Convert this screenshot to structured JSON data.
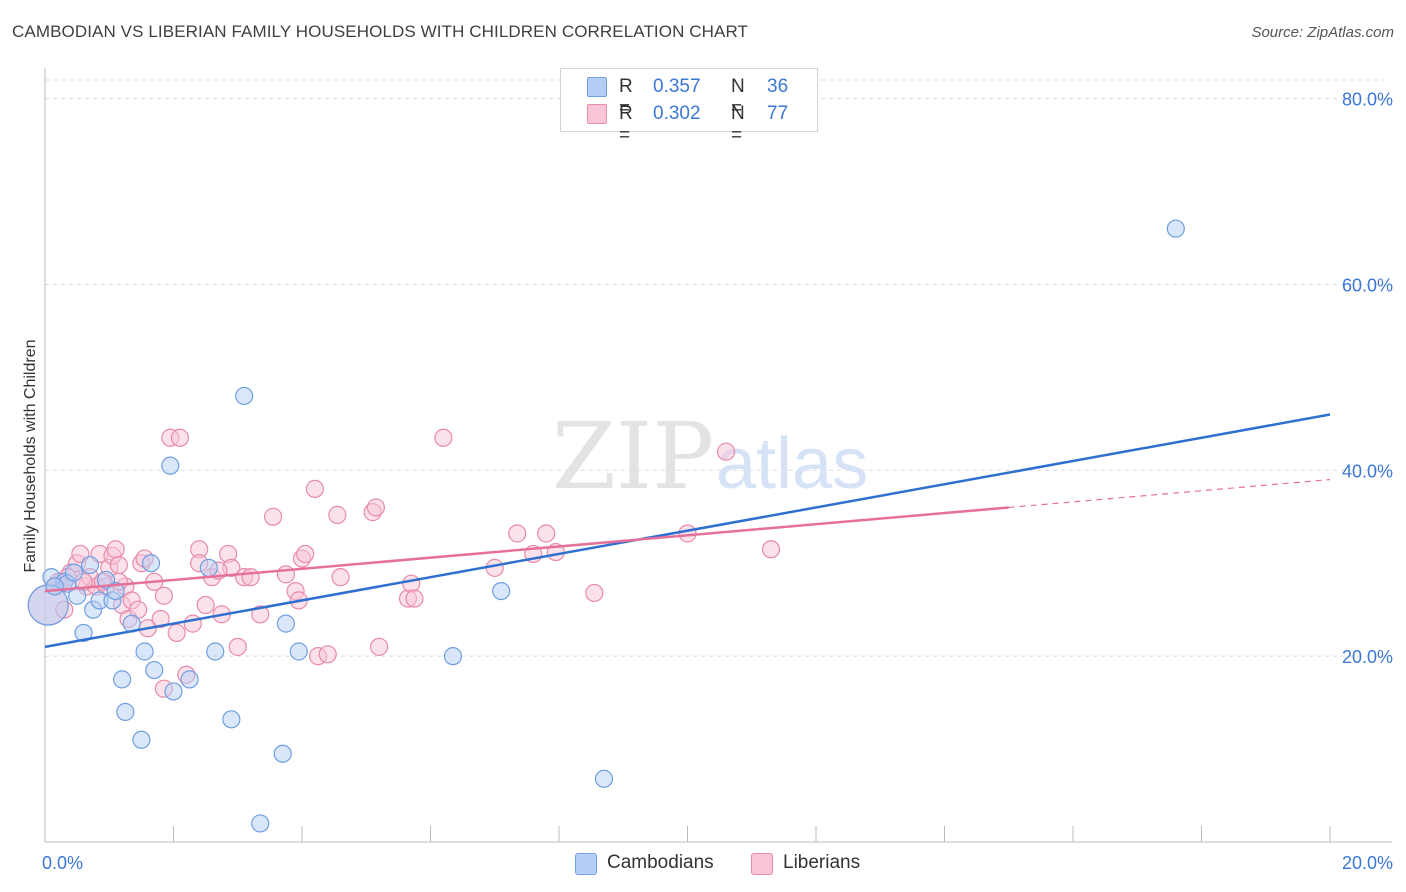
{
  "title": "CAMBODIAN VS LIBERIAN FAMILY HOUSEHOLDS WITH CHILDREN CORRELATION CHART",
  "source": "Source: ZipAtlas.com",
  "watermark": {
    "zip": "ZIP",
    "atlas": "atlas"
  },
  "colors": {
    "blue_fill": "#b5cef5",
    "blue_stroke": "#6f9fe0",
    "blue_line": "#2f6fd0",
    "pink_fill": "#f8c6d6",
    "pink_stroke": "#e88aaa",
    "pink_line": "#e5719a",
    "grid": "#dcdcdc",
    "tick_label": "#3b78d6"
  },
  "legend": {
    "rows": [
      {
        "r_label": "R =",
        "r_value": "0.357",
        "n_label": "N =",
        "n_value": "36"
      },
      {
        "r_label": "R =",
        "r_value": "0.302",
        "n_label": "N =",
        "n_value": "77"
      }
    ]
  },
  "bottom_legend": {
    "cambodians": "Cambodians",
    "liberians": "Liberians"
  },
  "chart_data": {
    "type": "scatter",
    "title": "CAMBODIAN VS LIBERIAN FAMILY HOUSEHOLDS WITH CHILDREN CORRELATION CHART",
    "xlabel": "",
    "ylabel": "Family Households with Children",
    "xlim": [
      0,
      20
    ],
    "ylim": [
      0,
      82
    ],
    "x_tick_labels": [
      {
        "value": 0,
        "label": "0.0%"
      },
      {
        "value": 20,
        "label": "20.0%"
      }
    ],
    "y_tick_labels": [
      {
        "value": 20,
        "label": "20.0%"
      },
      {
        "value": 40,
        "label": "40.0%"
      },
      {
        "value": 60,
        "label": "60.0%"
      },
      {
        "value": 80,
        "label": "80.0%"
      }
    ],
    "grid": true,
    "series": [
      {
        "name": "Cambodians",
        "color": "blue",
        "R": 0.357,
        "N": 36,
        "trend": {
          "x": [
            0,
            20
          ],
          "y": [
            21.0,
            46.0
          ]
        },
        "points": [
          {
            "x": 0.05,
            "y": 25.5,
            "big": true
          },
          {
            "x": 0.1,
            "y": 28.5
          },
          {
            "x": 0.3,
            "y": 28.0
          },
          {
            "x": 0.35,
            "y": 27.8
          },
          {
            "x": 0.45,
            "y": 29.0
          },
          {
            "x": 0.5,
            "y": 26.5
          },
          {
            "x": 0.6,
            "y": 22.5
          },
          {
            "x": 0.7,
            "y": 29.8
          },
          {
            "x": 0.75,
            "y": 25.0
          },
          {
            "x": 0.85,
            "y": 26.0
          },
          {
            "x": 0.95,
            "y": 28.2
          },
          {
            "x": 1.05,
            "y": 26.0
          },
          {
            "x": 1.1,
            "y": 27.0
          },
          {
            "x": 1.2,
            "y": 17.5
          },
          {
            "x": 1.25,
            "y": 14.0
          },
          {
            "x": 1.35,
            "y": 23.5
          },
          {
            "x": 1.5,
            "y": 11.0
          },
          {
            "x": 1.55,
            "y": 20.5
          },
          {
            "x": 1.65,
            "y": 30.0
          },
          {
            "x": 1.7,
            "y": 18.5
          },
          {
            "x": 1.95,
            "y": 40.5
          },
          {
            "x": 2.0,
            "y": 16.2
          },
          {
            "x": 2.25,
            "y": 17.5
          },
          {
            "x": 2.55,
            "y": 29.5
          },
          {
            "x": 2.65,
            "y": 20.5
          },
          {
            "x": 2.9,
            "y": 13.2
          },
          {
            "x": 3.1,
            "y": 48.0
          },
          {
            "x": 3.35,
            "y": 2.0
          },
          {
            "x": 3.7,
            "y": 9.5
          },
          {
            "x": 3.75,
            "y": 23.5
          },
          {
            "x": 3.95,
            "y": 20.5
          },
          {
            "x": 6.35,
            "y": 20.0
          },
          {
            "x": 7.1,
            "y": 27.0
          },
          {
            "x": 8.7,
            "y": 6.8
          },
          {
            "x": 17.6,
            "y": 66.0
          },
          {
            "x": 0.15,
            "y": 27.5
          }
        ]
      },
      {
        "name": "Liberians",
        "color": "pink",
        "R": 0.302,
        "N": 77,
        "trend": {
          "x": [
            0,
            15.0
          ],
          "y": [
            27.0,
            36.0
          ]
        },
        "trend_dashed": {
          "x": [
            15.0,
            20.0
          ],
          "y": [
            36.0,
            39.0
          ]
        },
        "points": [
          {
            "x": 0.05,
            "y": 25.5,
            "big": true
          },
          {
            "x": 0.15,
            "y": 27.5
          },
          {
            "x": 0.25,
            "y": 28.0
          },
          {
            "x": 0.3,
            "y": 25.0
          },
          {
            "x": 0.4,
            "y": 29.0
          },
          {
            "x": 0.5,
            "y": 30.0
          },
          {
            "x": 0.55,
            "y": 31.0
          },
          {
            "x": 0.65,
            "y": 27.5
          },
          {
            "x": 0.7,
            "y": 28.5
          },
          {
            "x": 0.8,
            "y": 27.5
          },
          {
            "x": 0.85,
            "y": 31.0
          },
          {
            "x": 0.95,
            "y": 27.5
          },
          {
            "x": 1.0,
            "y": 29.5
          },
          {
            "x": 1.05,
            "y": 30.8
          },
          {
            "x": 1.1,
            "y": 31.5
          },
          {
            "x": 1.15,
            "y": 29.8
          },
          {
            "x": 1.2,
            "y": 25.5
          },
          {
            "x": 1.25,
            "y": 27.5
          },
          {
            "x": 1.3,
            "y": 24.0
          },
          {
            "x": 1.35,
            "y": 26.0
          },
          {
            "x": 1.45,
            "y": 25.0
          },
          {
            "x": 1.5,
            "y": 30.0
          },
          {
            "x": 1.55,
            "y": 30.5
          },
          {
            "x": 1.6,
            "y": 23.0
          },
          {
            "x": 1.7,
            "y": 28.0
          },
          {
            "x": 1.8,
            "y": 24.0
          },
          {
            "x": 1.85,
            "y": 16.5
          },
          {
            "x": 1.85,
            "y": 26.5
          },
          {
            "x": 1.95,
            "y": 43.5
          },
          {
            "x": 2.05,
            "y": 22.5
          },
          {
            "x": 2.1,
            "y": 43.5
          },
          {
            "x": 2.2,
            "y": 18.0
          },
          {
            "x": 2.3,
            "y": 23.5
          },
          {
            "x": 2.4,
            "y": 31.5
          },
          {
            "x": 2.4,
            "y": 30.0
          },
          {
            "x": 2.5,
            "y": 25.5
          },
          {
            "x": 2.6,
            "y": 28.5
          },
          {
            "x": 2.75,
            "y": 24.5
          },
          {
            "x": 2.85,
            "y": 31.0
          },
          {
            "x": 2.9,
            "y": 29.5
          },
          {
            "x": 3.0,
            "y": 21.0
          },
          {
            "x": 3.1,
            "y": 28.5
          },
          {
            "x": 3.2,
            "y": 28.5
          },
          {
            "x": 3.35,
            "y": 24.5
          },
          {
            "x": 3.55,
            "y": 35.0
          },
          {
            "x": 3.75,
            "y": 28.8
          },
          {
            "x": 3.9,
            "y": 27.0
          },
          {
            "x": 3.95,
            "y": 26.0
          },
          {
            "x": 4.0,
            "y": 30.5
          },
          {
            "x": 4.05,
            "y": 31.0
          },
          {
            "x": 4.2,
            "y": 38.0
          },
          {
            "x": 4.25,
            "y": 20.0
          },
          {
            "x": 4.4,
            "y": 20.2
          },
          {
            "x": 4.55,
            "y": 35.2
          },
          {
            "x": 4.6,
            "y": 28.5
          },
          {
            "x": 5.1,
            "y": 35.5
          },
          {
            "x": 5.15,
            "y": 36.0
          },
          {
            "x": 5.2,
            "y": 21.0
          },
          {
            "x": 5.65,
            "y": 26.2
          },
          {
            "x": 5.7,
            "y": 27.8
          },
          {
            "x": 5.75,
            "y": 26.2
          },
          {
            "x": 6.2,
            "y": 43.5
          },
          {
            "x": 7.0,
            "y": 29.5
          },
          {
            "x": 7.35,
            "y": 33.2
          },
          {
            "x": 7.6,
            "y": 31.0
          },
          {
            "x": 7.8,
            "y": 33.2
          },
          {
            "x": 7.95,
            "y": 31.2
          },
          {
            "x": 8.55,
            "y": 26.8
          },
          {
            "x": 10.0,
            "y": 33.2
          },
          {
            "x": 10.6,
            "y": 42.0
          },
          {
            "x": 11.3,
            "y": 31.5
          },
          {
            "x": 0.35,
            "y": 28.5
          },
          {
            "x": 0.6,
            "y": 28.0
          },
          {
            "x": 0.9,
            "y": 28.0
          },
          {
            "x": 1.15,
            "y": 28.0
          },
          {
            "x": 2.7,
            "y": 29.2
          },
          {
            "x": 0.2,
            "y": 28.0
          }
        ]
      }
    ]
  }
}
